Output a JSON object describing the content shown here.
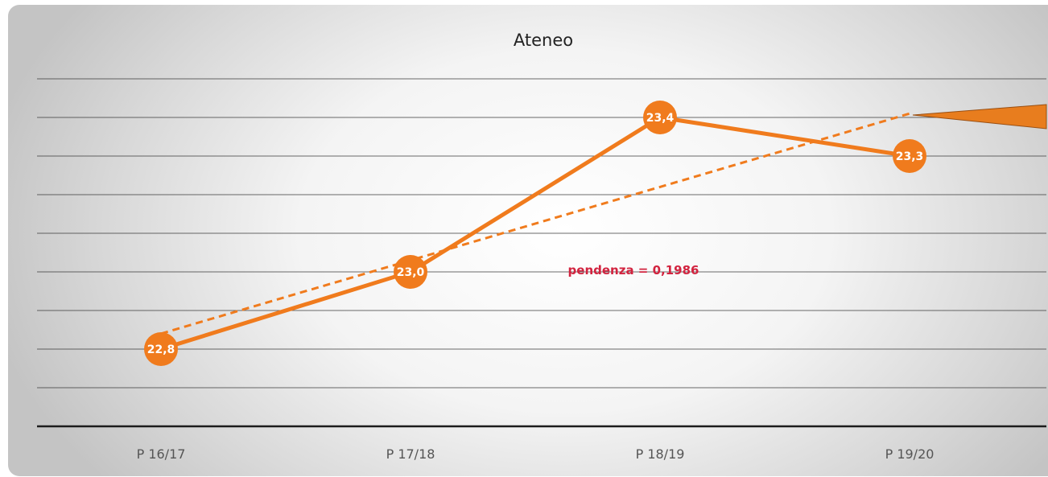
{
  "chart_data": {
    "type": "line",
    "title": "Ateneo",
    "categories": [
      "P 16/17",
      "P 17/18",
      "P 18/19",
      "P 19/20"
    ],
    "series": [
      {
        "values": [
          22.8,
          23.0,
          23.4,
          23.3
        ],
        "labels": [
          "22,8",
          "23,0",
          "23,4",
          "23,3"
        ]
      }
    ],
    "trendline": {
      "style": "dashed",
      "slope": 0.1986
    },
    "annotation": "pendenza = 0,1986",
    "ylim": [
      22.6,
      23.5
    ],
    "grid": true,
    "legend": "none",
    "colors": {
      "series": "#f07b1d",
      "annotation": "#d2233f",
      "grid": "#3a3a3a",
      "callout": "#e87d1e"
    }
  }
}
